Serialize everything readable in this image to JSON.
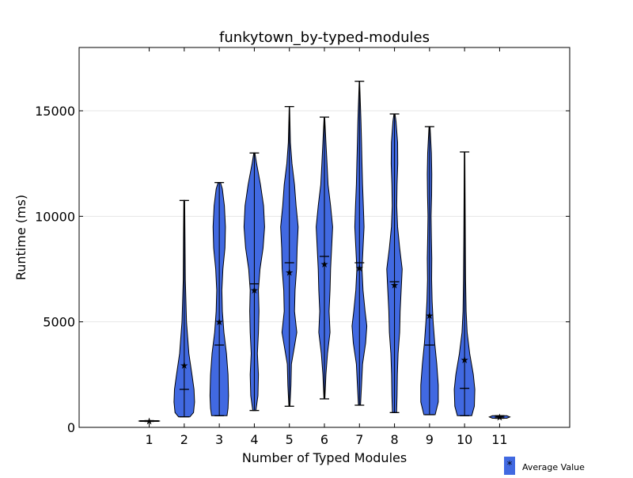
{
  "chart_data": {
    "type": "violin",
    "title": "funkytown_by-typed-modules",
    "xlabel": "Number of Typed Modules",
    "ylabel": "Runtime (ms)",
    "ylim": [
      0,
      18000
    ],
    "y_ticks": [
      0,
      5000,
      10000,
      15000
    ],
    "y_tick_labels": [
      "0",
      "5000",
      "10000",
      "15000"
    ],
    "x_categories": [
      "1",
      "2",
      "3",
      "4",
      "5",
      "6",
      "7",
      "8",
      "9",
      "10",
      "11"
    ],
    "grid": "horizontal",
    "violin_color": "#4169e1",
    "legend": {
      "label": "Average Value",
      "marker": "*",
      "placement": "below-right"
    },
    "series": [
      {
        "category": "1",
        "min": 280,
        "max": 320,
        "median": 300,
        "mean": 300,
        "profile": [
          [
            280,
            0.9
          ],
          [
            300,
            1.0
          ],
          [
            320,
            0.9
          ]
        ]
      },
      {
        "category": "2",
        "min": 500,
        "max": 10750,
        "median": 1800,
        "mean": 2950,
        "profile": [
          [
            500,
            0.55
          ],
          [
            700,
            0.9
          ],
          [
            1200,
            1.0
          ],
          [
            1800,
            0.95
          ],
          [
            2500,
            0.75
          ],
          [
            3500,
            0.45
          ],
          [
            5000,
            0.22
          ],
          [
            7000,
            0.1
          ],
          [
            9000,
            0.07
          ],
          [
            10750,
            0.04
          ]
        ]
      },
      {
        "category": "3",
        "min": 550,
        "max": 11600,
        "median": 3900,
        "mean": 5000,
        "profile": [
          [
            550,
            0.75
          ],
          [
            900,
            0.85
          ],
          [
            1500,
            0.9
          ],
          [
            2500,
            0.85
          ],
          [
            3500,
            0.7
          ],
          [
            4500,
            0.45
          ],
          [
            5500,
            0.3
          ],
          [
            6500,
            0.25
          ],
          [
            7500,
            0.35
          ],
          [
            8500,
            0.55
          ],
          [
            9500,
            0.6
          ],
          [
            10500,
            0.5
          ],
          [
            11300,
            0.3
          ],
          [
            11600,
            0.12
          ]
        ]
      },
      {
        "category": "4",
        "min": 800,
        "max": 13000,
        "median": 6800,
        "mean": 6500,
        "profile": [
          [
            800,
            0.15
          ],
          [
            1500,
            0.35
          ],
          [
            2500,
            0.4
          ],
          [
            3500,
            0.3
          ],
          [
            4500,
            0.4
          ],
          [
            5500,
            0.45
          ],
          [
            6500,
            0.4
          ],
          [
            7500,
            0.55
          ],
          [
            8500,
            0.85
          ],
          [
            9500,
            1.0
          ],
          [
            10500,
            0.9
          ],
          [
            11500,
            0.6
          ],
          [
            12500,
            0.22
          ],
          [
            13000,
            0.05
          ]
        ]
      },
      {
        "category": "5",
        "min": 1000,
        "max": 15200,
        "median": 7800,
        "mean": 7350,
        "profile": [
          [
            1000,
            0.05
          ],
          [
            2000,
            0.15
          ],
          [
            3000,
            0.2
          ],
          [
            4000,
            0.55
          ],
          [
            4500,
            0.72
          ],
          [
            5500,
            0.5
          ],
          [
            6500,
            0.55
          ],
          [
            7500,
            0.7
          ],
          [
            8500,
            0.75
          ],
          [
            9500,
            0.85
          ],
          [
            10500,
            0.65
          ],
          [
            11500,
            0.5
          ],
          [
            12500,
            0.25
          ],
          [
            13500,
            0.1
          ],
          [
            15200,
            0.02
          ]
        ]
      },
      {
        "category": "6",
        "min": 1350,
        "max": 14700,
        "median": 8100,
        "mean": 7750,
        "profile": [
          [
            1350,
            0.05
          ],
          [
            2500,
            0.15
          ],
          [
            3500,
            0.3
          ],
          [
            4500,
            0.55
          ],
          [
            5500,
            0.45
          ],
          [
            6500,
            0.55
          ],
          [
            7500,
            0.6
          ],
          [
            8500,
            0.7
          ],
          [
            9500,
            0.8
          ],
          [
            10500,
            0.6
          ],
          [
            11500,
            0.35
          ],
          [
            12500,
            0.25
          ],
          [
            13500,
            0.15
          ],
          [
            14700,
            0.03
          ]
        ]
      },
      {
        "category": "7",
        "min": 1050,
        "max": 16400,
        "median": 7800,
        "mean": 7550,
        "profile": [
          [
            1050,
            0.1
          ],
          [
            2000,
            0.2
          ],
          [
            3000,
            0.3
          ],
          [
            4000,
            0.6
          ],
          [
            4800,
            0.72
          ],
          [
            5500,
            0.55
          ],
          [
            6500,
            0.35
          ],
          [
            7500,
            0.25
          ],
          [
            8500,
            0.35
          ],
          [
            9500,
            0.45
          ],
          [
            10500,
            0.38
          ],
          [
            11500,
            0.3
          ],
          [
            12500,
            0.25
          ],
          [
            13500,
            0.2
          ],
          [
            14500,
            0.15
          ],
          [
            15500,
            0.08
          ],
          [
            16400,
            0.02
          ]
        ]
      },
      {
        "category": "8",
        "min": 700,
        "max": 14850,
        "median": 6900,
        "mean": 6750,
        "profile": [
          [
            700,
            0.2
          ],
          [
            1500,
            0.25
          ],
          [
            2500,
            0.28
          ],
          [
            3500,
            0.35
          ],
          [
            4500,
            0.5
          ],
          [
            5500,
            0.55
          ],
          [
            6500,
            0.65
          ],
          [
            7500,
            0.75
          ],
          [
            8500,
            0.5
          ],
          [
            9500,
            0.3
          ],
          [
            10500,
            0.22
          ],
          [
            11500,
            0.25
          ],
          [
            12500,
            0.32
          ],
          [
            13500,
            0.3
          ],
          [
            14500,
            0.15
          ],
          [
            14850,
            0.05
          ]
        ]
      },
      {
        "category": "9",
        "min": 600,
        "max": 14250,
        "median": 3900,
        "mean": 5300,
        "profile": [
          [
            600,
            0.55
          ],
          [
            1200,
            0.85
          ],
          [
            2000,
            0.85
          ],
          [
            3000,
            0.7
          ],
          [
            4000,
            0.5
          ],
          [
            5000,
            0.35
          ],
          [
            6000,
            0.25
          ],
          [
            7000,
            0.2
          ],
          [
            8000,
            0.22
          ],
          [
            9000,
            0.18
          ],
          [
            10000,
            0.15
          ],
          [
            11000,
            0.2
          ],
          [
            12000,
            0.22
          ],
          [
            13000,
            0.18
          ],
          [
            14250,
            0.05
          ]
        ]
      },
      {
        "category": "10",
        "min": 550,
        "max": 13050,
        "median": 1850,
        "mean": 3200,
        "profile": [
          [
            550,
            0.7
          ],
          [
            1000,
            0.95
          ],
          [
            1800,
            1.0
          ],
          [
            2500,
            0.85
          ],
          [
            3500,
            0.5
          ],
          [
            4500,
            0.25
          ],
          [
            5500,
            0.15
          ],
          [
            7000,
            0.1
          ],
          [
            9000,
            0.07
          ],
          [
            11000,
            0.05
          ],
          [
            13050,
            0.03
          ]
        ]
      },
      {
        "category": "11",
        "min": 430,
        "max": 550,
        "median": 490,
        "mean": 490,
        "profile": [
          [
            430,
            0.7
          ],
          [
            490,
            1.0
          ],
          [
            550,
            0.7
          ]
        ]
      }
    ]
  }
}
